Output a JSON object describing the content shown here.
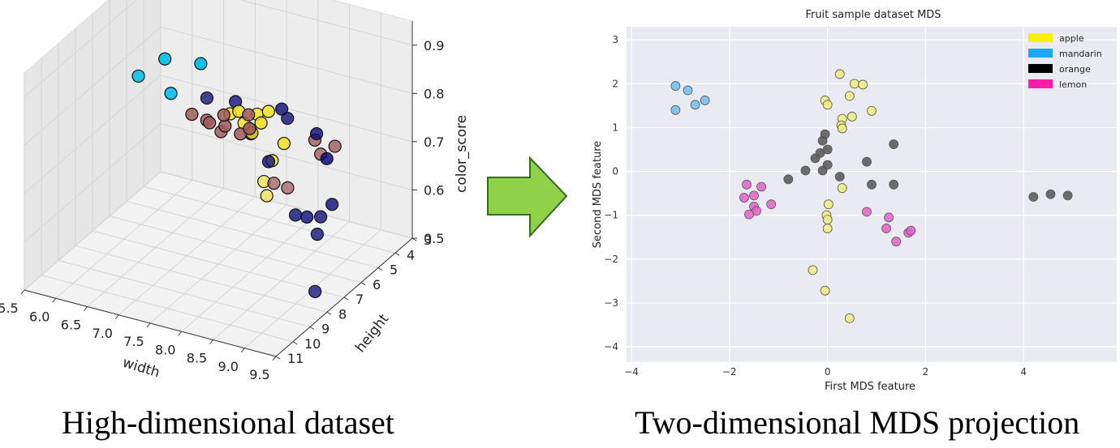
{
  "captions": {
    "left": "High-dimensional dataset",
    "right": "Two-dimensional MDS projection"
  },
  "chart_data": [
    {
      "type": "scatter",
      "subtype": "3d-scatter",
      "title": "",
      "xlabel": "width",
      "ylabel": "height",
      "zlabel": "color_score",
      "x_ticks": [
        "5.5",
        "6.0",
        "6.5",
        "7.0",
        "7.5",
        "8.0",
        "8.5",
        "9.0",
        "9.5"
      ],
      "y_ticks": [
        "3",
        "4",
        "5",
        "6",
        "7",
        "8",
        "9",
        "10",
        "11"
      ],
      "z_ticks": [
        "0.5",
        "0.6",
        "0.7",
        "0.8",
        "0.9"
      ],
      "xlim": [
        5.5,
        9.5
      ],
      "ylim": [
        3,
        11
      ],
      "zlim": [
        0.5,
        0.95
      ],
      "grid": true,
      "series": [
        {
          "color": "#00bfe6",
          "points": [
            [
              5.85,
              5.6,
              0.79
            ],
            [
              6.0,
              4.6,
              0.8
            ],
            [
              6.15,
              4.8,
              0.74
            ],
            [
              6.3,
              3.6,
              0.77
            ]
          ]
        },
        {
          "color": "#a05a5a",
          "points": [
            [
              6.7,
              5.6,
              0.74
            ],
            [
              6.9,
              5.3,
              0.72
            ],
            [
              7.1,
              5.2,
              0.74
            ],
            [
              7.2,
              5.5,
              0.73
            ],
            [
              7.4,
              4.8,
              0.71
            ],
            [
              7.5,
              5.7,
              0.73
            ],
            [
              7.1,
              6.2,
              0.76
            ],
            [
              7.3,
              6.1,
              0.74
            ],
            [
              7.6,
              5.6,
              0.77
            ],
            [
              8.6,
              7.8,
              0.73
            ],
            [
              8.9,
              8.1,
              0.74
            ],
            [
              8.9,
              6.5,
              0.79
            ],
            [
              9.1,
              6.9,
              0.78
            ],
            [
              9.3,
              6.8,
              0.8
            ]
          ]
        },
        {
          "color": "#0a0a7a",
          "points": [
            [
              7.4,
              7.3,
              0.85
            ],
            [
              7.8,
              7.1,
              0.85
            ],
            [
              8.4,
              6.6,
              0.84
            ],
            [
              8.6,
              7.0,
              0.84
            ],
            [
              8.9,
              6.4,
              0.8
            ],
            [
              8.1,
              7.3,
              0.8
            ],
            [
              8.3,
              7.0,
              0.74
            ],
            [
              8.9,
              5.8,
              0.73
            ],
            [
              8.7,
              6.9,
              0.64
            ],
            [
              8.8,
              6.6,
              0.63
            ],
            [
              9.2,
              6.6,
              0.67
            ],
            [
              9.1,
              6.9,
              0.65
            ],
            [
              9.1,
              7.1,
              0.62
            ],
            [
              9.2,
              7.6,
              0.52
            ]
          ]
        },
        {
          "color": "#f2e01a",
          "points": [
            [
              7.5,
              5.8,
              0.78
            ],
            [
              7.5,
              6.3,
              0.79
            ],
            [
              7.9,
              6.2,
              0.8
            ],
            [
              7.8,
              6.6,
              0.79
            ],
            [
              7.8,
              5.6,
              0.76
            ],
            [
              8.0,
              5.9,
              0.8
            ],
            [
              7.9,
              6.5,
              0.77
            ],
            [
              8.3,
              6.1,
              0.75
            ],
            [
              8.6,
              7.9,
              0.78
            ],
            [
              9.2,
              10.6,
              0.84
            ],
            [
              9.3,
              10.8,
              0.82
            ]
          ]
        }
      ]
    },
    {
      "type": "scatter",
      "title": "Fruit sample dataset MDS",
      "xlabel": "First MDS feature",
      "ylabel": "Second MDS feature",
      "xlim": [
        -4.1,
        5.9
      ],
      "ylim": [
        -4.35,
        3.3
      ],
      "x_ticks": [
        -4,
        -2,
        0,
        2,
        4
      ],
      "y_ticks": [
        -4,
        -3,
        -2,
        -1,
        0,
        1,
        2,
        3
      ],
      "grid": true,
      "legend_position": "top-right",
      "series": [
        {
          "name": "apple",
          "color": "#f4f000",
          "marker_color": "#eeee7a",
          "points": [
            [
              0.25,
              2.22
            ],
            [
              0.55,
              2.0
            ],
            [
              0.72,
              1.98
            ],
            [
              0.45,
              1.72
            ],
            [
              -0.05,
              1.62
            ],
            [
              0.0,
              1.52
            ],
            [
              0.9,
              1.38
            ],
            [
              0.3,
              1.2
            ],
            [
              0.5,
              1.25
            ],
            [
              0.28,
              1.05
            ],
            [
              0.3,
              0.98
            ],
            [
              0.3,
              -0.38
            ],
            [
              0.02,
              -0.75
            ],
            [
              -0.02,
              -1.0
            ],
            [
              0.0,
              -1.1
            ],
            [
              0.0,
              -1.3
            ],
            [
              -0.3,
              -2.25
            ],
            [
              -0.05,
              -2.72
            ],
            [
              0.45,
              -3.35
            ]
          ]
        },
        {
          "name": "mandarin",
          "color": "#1aa7f5",
          "marker_color": "#6ec0ec",
          "points": [
            [
              -3.1,
              1.95
            ],
            [
              -2.85,
              1.85
            ],
            [
              -2.5,
              1.62
            ],
            [
              -2.7,
              1.52
            ],
            [
              -3.1,
              1.4
            ]
          ]
        },
        {
          "name": "orange",
          "color": "#000000",
          "marker_color": "#555555",
          "points": [
            [
              -0.05,
              0.85
            ],
            [
              -0.1,
              0.7
            ],
            [
              0.0,
              0.5
            ],
            [
              -0.15,
              0.42
            ],
            [
              -0.25,
              0.3
            ],
            [
              1.35,
              0.62
            ],
            [
              0.8,
              0.22
            ],
            [
              0.0,
              0.15
            ],
            [
              -0.45,
              0.02
            ],
            [
              -0.1,
              0.02
            ],
            [
              -0.8,
              -0.18
            ],
            [
              0.25,
              -0.12
            ],
            [
              0.9,
              -0.3
            ],
            [
              1.35,
              -0.3
            ],
            [
              4.2,
              -0.58
            ],
            [
              4.55,
              -0.52
            ],
            [
              4.9,
              -0.55
            ]
          ]
        },
        {
          "name": "lemon",
          "color": "#ff1aa8",
          "marker_color": "#e660c8",
          "points": [
            [
              -1.65,
              -0.3
            ],
            [
              -1.35,
              -0.35
            ],
            [
              -1.5,
              -0.55
            ],
            [
              -1.7,
              -0.6
            ],
            [
              -1.5,
              -0.8
            ],
            [
              -1.45,
              -0.9
            ],
            [
              -1.6,
              -0.98
            ],
            [
              -1.15,
              -0.75
            ],
            [
              0.8,
              -0.92
            ],
            [
              1.25,
              -1.05
            ],
            [
              1.2,
              -1.3
            ],
            [
              1.4,
              -1.6
            ],
            [
              1.65,
              -1.4
            ],
            [
              1.7,
              -1.35
            ]
          ]
        }
      ]
    }
  ]
}
